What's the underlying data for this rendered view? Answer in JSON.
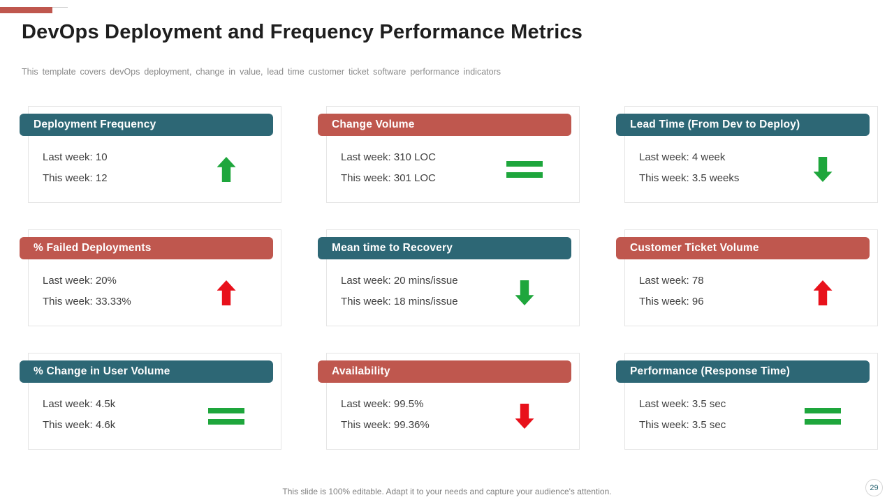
{
  "slide": {
    "title": "DevOps Deployment and Frequency Performance Metrics",
    "subtitle": "This template covers devOps deployment, change in value, lead time customer ticket software performance indicators",
    "footer": "This slide is 100% editable. Adapt it to your needs and capture your audience's attention.",
    "page_number": "29"
  },
  "colors": {
    "teal": "#2D6775",
    "red": "#BF574E",
    "green": "#1EA63C",
    "arrow_red": "#E8111B"
  },
  "cards": [
    {
      "title": "Deployment Frequency",
      "header_color": "teal",
      "last_week": "Last week: 10",
      "this_week": "This week: 12",
      "indicator": "up-arrow",
      "indicator_color": "green"
    },
    {
      "title": "Change Volume",
      "header_color": "red",
      "last_week": "Last week: 310 LOC",
      "this_week": "This week: 301 LOC",
      "indicator": "equals",
      "indicator_color": "green"
    },
    {
      "title": "Lead Time (From Dev to Deploy)",
      "header_color": "teal",
      "last_week": "Last week: 4 week",
      "this_week": "This week: 3.5 weeks",
      "indicator": "down-arrow",
      "indicator_color": "green"
    },
    {
      "title": "% Failed Deployments",
      "header_color": "red",
      "last_week": "Last week: 20%",
      "this_week": "This week: 33.33%",
      "indicator": "up-arrow",
      "indicator_color": "red"
    },
    {
      "title": "Mean time to Recovery",
      "header_color": "teal",
      "last_week": "Last week: 20 mins/issue",
      "this_week": "This week: 18 mins/issue",
      "indicator": "down-arrow",
      "indicator_color": "green"
    },
    {
      "title": "Customer Ticket Volume",
      "header_color": "red",
      "last_week": "Last week: 78",
      "this_week": "This week: 96",
      "indicator": "up-arrow",
      "indicator_color": "red"
    },
    {
      "title": "% Change in User Volume",
      "header_color": "teal",
      "last_week": "Last week: 4.5k",
      "this_week": "This week: 4.6k",
      "indicator": "equals",
      "indicator_color": "green"
    },
    {
      "title": "Availability",
      "header_color": "red",
      "last_week": "Last week: 99.5%",
      "this_week": "This week: 99.36%",
      "indicator": "down-arrow",
      "indicator_color": "red"
    },
    {
      "title": "Performance (Response Time)",
      "header_color": "teal",
      "last_week": "Last week: 3.5 sec",
      "this_week": "This week: 3.5 sec",
      "indicator": "equals",
      "indicator_color": "green"
    }
  ]
}
